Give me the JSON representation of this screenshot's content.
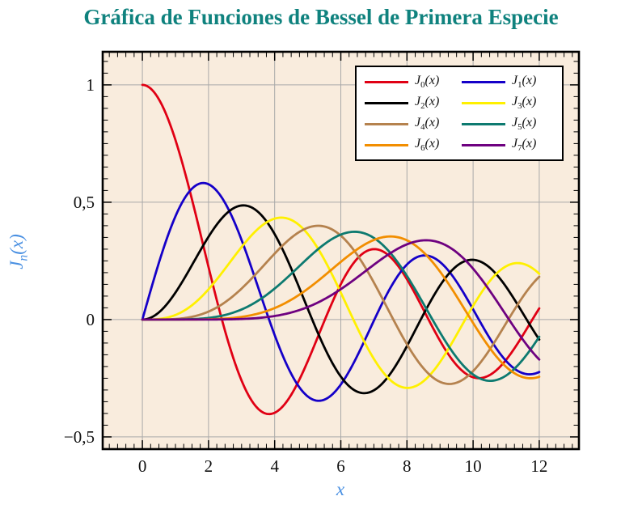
{
  "colors": {
    "title": "#0f827e",
    "axis_labels": "#4a90e2",
    "plot_background": "#f9ecdd",
    "grid": "#a9a9a9",
    "frame": "#000000",
    "tick_labels": "#111111"
  },
  "chart_data": {
    "type": "line",
    "title": "Gráfica de Funciones de Bessel de Primera Especie",
    "xlabel": "x",
    "ylabel": {
      "base": "J",
      "sub": "n",
      "arg": "(x)"
    },
    "xlim": [
      -1.2,
      13.2
    ],
    "ylim": [
      -0.552,
      1.141
    ],
    "x_major_ticks": {
      "values": [
        0,
        2,
        4,
        6,
        8,
        10,
        12
      ],
      "labels": [
        "0",
        "2",
        "4",
        "6",
        "8",
        "10",
        "12"
      ]
    },
    "y_major_ticks": {
      "values": [
        -0.5,
        0,
        0.5,
        1
      ],
      "labels": [
        "−0,5",
        "0",
        "0,5",
        "1"
      ]
    },
    "x_minor_step": 0.25,
    "y_minor_step": 0.05,
    "grid": "major",
    "legend_position": "top-right",
    "x_sample_range": [
      0,
      12
    ],
    "samples_per_unit": 20,
    "x_integers": [
      0,
      1,
      2,
      3,
      4,
      5,
      6,
      7,
      8,
      9,
      10,
      11,
      12
    ],
    "series": [
      {
        "order": 0,
        "color": "#e00014",
        "label": {
          "base": "J",
          "sub": "0",
          "arg": "(x)"
        },
        "values_at_x": [
          1.0,
          0.7652,
          0.2239,
          -0.2601,
          -0.3971,
          -0.1776,
          0.1506,
          0.3001,
          0.1717,
          -0.0903,
          -0.2459,
          -0.1712,
          0.0477
        ]
      },
      {
        "order": 1,
        "color": "#1500c8",
        "label": {
          "base": "J",
          "sub": "1",
          "arg": "(x)"
        },
        "values_at_x": [
          0.0,
          0.4401,
          0.5767,
          0.3391,
          -0.066,
          -0.3276,
          -0.2767,
          -0.0047,
          0.2346,
          0.2453,
          0.0435,
          -0.1768,
          -0.2234
        ]
      },
      {
        "order": 2,
        "color": "#000000",
        "label": {
          "base": "J",
          "sub": "2",
          "arg": "(x)"
        },
        "values_at_x": [
          0.0,
          0.1149,
          0.3528,
          0.4861,
          0.3641,
          0.0466,
          -0.2429,
          -0.3014,
          -0.113,
          0.1448,
          0.2546,
          0.139,
          -0.0849
        ]
      },
      {
        "order": 3,
        "color": "#fff000",
        "label": {
          "base": "J",
          "sub": "3",
          "arg": "(x)"
        },
        "values_at_x": [
          0.0,
          0.0196,
          0.1289,
          0.3091,
          0.4302,
          0.3648,
          0.1148,
          -0.1676,
          -0.2911,
          -0.1809,
          0.0584,
          0.2273,
          0.1951
        ]
      },
      {
        "order": 4,
        "color": "#b5824e",
        "label": {
          "base": "J",
          "sub": "4",
          "arg": "(x)"
        },
        "values_at_x": [
          0.0,
          0.0025,
          0.034,
          0.132,
          0.2811,
          0.3912,
          0.3576,
          0.1578,
          -0.1054,
          -0.2655,
          -0.2196,
          -0.015,
          0.1825
        ]
      },
      {
        "order": 5,
        "color": "#0d7a70",
        "label": {
          "base": "J",
          "sub": "5",
          "arg": "(x)"
        },
        "values_at_x": [
          0.0,
          0.0002,
          0.007,
          0.043,
          0.1321,
          0.2611,
          0.3621,
          0.3479,
          0.1858,
          -0.055,
          -0.2341,
          -0.2383,
          -0.0735
        ]
      },
      {
        "order": 6,
        "color": "#f28e00",
        "label": {
          "base": "J",
          "sub": "6",
          "arg": "(x)"
        },
        "values_at_x": [
          0.0,
          0.0,
          0.0012,
          0.0114,
          0.0491,
          0.131,
          0.2458,
          0.3392,
          0.3376,
          0.2043,
          -0.0145,
          -0.2016,
          -0.2437
        ]
      },
      {
        "order": 7,
        "color": "#6e0180",
        "label": {
          "base": "J",
          "sub": "7",
          "arg": "(x)"
        },
        "values_at_x": [
          0.0,
          0.0,
          0.0002,
          0.0025,
          0.0152,
          0.0534,
          0.1296,
          0.2336,
          0.3206,
          0.3275,
          0.2167,
          0.0184,
          -0.1703
        ]
      }
    ]
  }
}
